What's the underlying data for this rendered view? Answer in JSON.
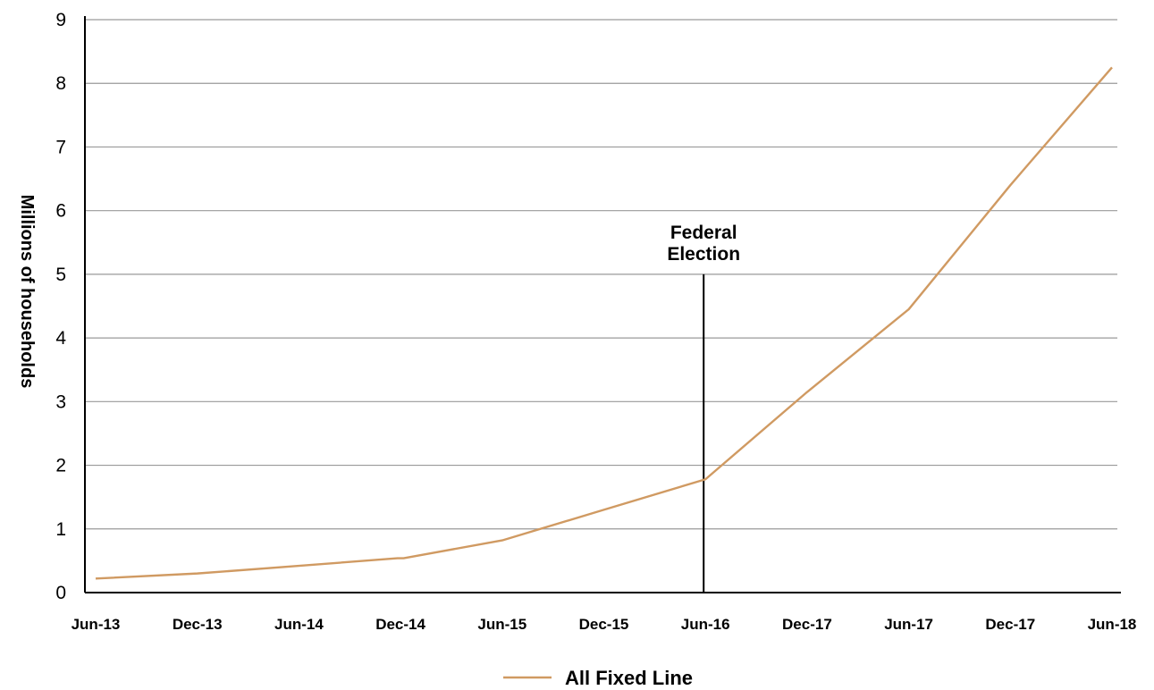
{
  "chart_data": {
    "type": "line",
    "title": "",
    "xlabel": "",
    "ylabel": "Millions of households",
    "ylim": [
      0,
      9
    ],
    "yticks": [
      "0",
      "1",
      "2",
      "3",
      "4",
      "5",
      "6",
      "7",
      "8",
      "9"
    ],
    "categories": [
      "Jun-13",
      "Dec-13",
      "Jun-14",
      "Dec-14",
      "Jun-15",
      "Dec-15",
      "Jun-16",
      "Dec-17",
      "Jun-17",
      "Dec-17",
      "Jun-18"
    ],
    "series": [
      {
        "name": "All Fixed Line",
        "color": "#d09a62",
        "x": [
          0,
          1,
          2,
          2.97,
          3.03,
          4,
          5,
          6,
          7,
          8,
          9,
          10
        ],
        "values": [
          0.22,
          0.3,
          0.42,
          0.54,
          0.54,
          0.82,
          1.3,
          1.78,
          3.15,
          4.45,
          6.4,
          8.25
        ]
      }
    ],
    "annotations": [
      {
        "text_lines": [
          "Federal",
          "Election"
        ],
        "x": 6,
        "y_top": 5
      }
    ],
    "grid": true,
    "legend": {
      "position": "bottom-center"
    }
  }
}
